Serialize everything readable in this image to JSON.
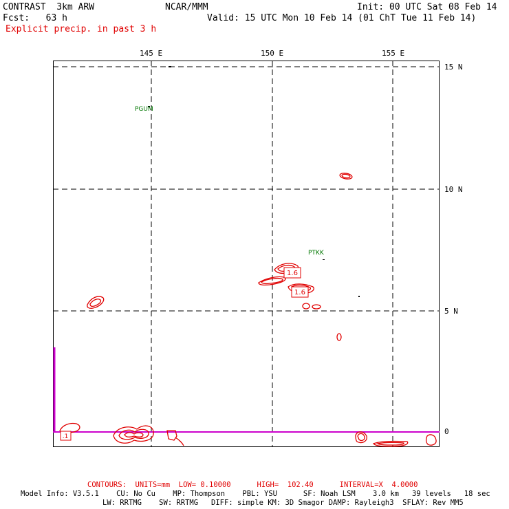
{
  "header": {
    "left_line1": "CONTRAST  3km ARW",
    "center_line1": "NCAR/MMM",
    "init": "Init: 00 UTC Sat 08 Feb 14",
    "fcst": "Fcst:   63 h",
    "valid": "Valid: 15 UTC Mon 10 Feb 14 (01 ChT Tue 11 Feb 14)",
    "field": "Explicit precip. in past 3 h"
  },
  "map": {
    "lon_labels": [
      "145 E",
      "150 E",
      "155 E"
    ],
    "lat_labels": [
      "15 N",
      "10 N",
      "5 N",
      "0"
    ],
    "stations": [
      "PGUM",
      "PTKK"
    ],
    "contour_labels": [
      "1.6",
      "1.6",
      ".1"
    ],
    "colors": {
      "contour": "#e00000",
      "equator": "#cc00cc",
      "station": "#007700"
    }
  },
  "footer": {
    "contours": "CONTOURS:  UNITS=mm  LOW= 0.10000      HIGH=  102.40      INTERVAL=X  4.0000",
    "model_line1": "Model Info: V3.5.1    CU: No Cu    MP: Thompson    PBL: YSU      SF: Noah LSM    3.0 km   39 levels   18 sec",
    "model_line2": "LW: RRTMG    SW: RRTMG   DIFF: simple KM: 3D Smagor DAMP: Rayleigh3  SFLAY: Rev MM5"
  }
}
